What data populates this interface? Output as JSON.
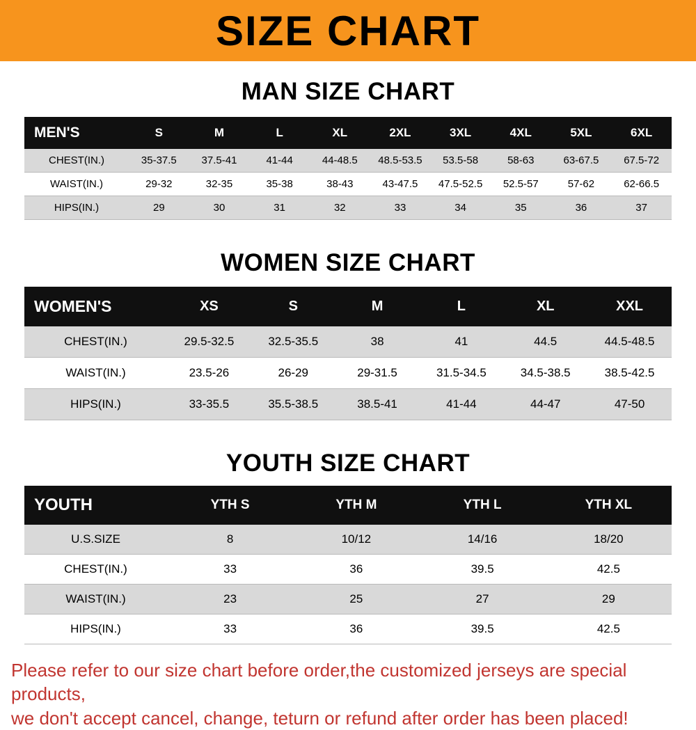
{
  "banner": {
    "title": "SIZE CHART"
  },
  "sections": [
    {
      "title": "MAN SIZE CHART",
      "table": {
        "header": [
          "MEN'S",
          "S",
          "M",
          "L",
          "XL",
          "2XL",
          "3XL",
          "4XL",
          "5XL",
          "6XL"
        ],
        "rows": [
          [
            "CHEST(IN.)",
            "35-37.5",
            "37.5-41",
            "41-44",
            "44-48.5",
            "48.5-53.5",
            "53.5-58",
            "58-63",
            "63-67.5",
            "67.5-72"
          ],
          [
            "WAIST(IN.)",
            "29-32",
            "32-35",
            "35-38",
            "38-43",
            "43-47.5",
            "47.5-52.5",
            "52.5-57",
            "57-62",
            "62-66.5"
          ],
          [
            "HIPS(IN.)",
            "29",
            "30",
            "31",
            "32",
            "33",
            "34",
            "35",
            "36",
            "37"
          ]
        ]
      }
    },
    {
      "title": "WOMEN SIZE CHART",
      "table": {
        "header": [
          "WOMEN'S",
          "XS",
          "S",
          "M",
          "L",
          "XL",
          "XXL"
        ],
        "rows": [
          [
            "CHEST(IN.)",
            "29.5-32.5",
            "32.5-35.5",
            "38",
            "41",
            "44.5",
            "44.5-48.5"
          ],
          [
            "WAIST(IN.)",
            "23.5-26",
            "26-29",
            "29-31.5",
            "31.5-34.5",
            "34.5-38.5",
            "38.5-42.5"
          ],
          [
            "HIPS(IN.)",
            "33-35.5",
            "35.5-38.5",
            "38.5-41",
            "41-44",
            "44-47",
            "47-50"
          ]
        ]
      }
    },
    {
      "title": "YOUTH SIZE CHART",
      "table": {
        "header": [
          "YOUTH",
          "YTH S",
          "YTH M",
          "YTH L",
          "YTH XL"
        ],
        "rows": [
          [
            "U.S.SIZE",
            "8",
            "10/12",
            "14/16",
            "18/20"
          ],
          [
            "CHEST(IN.)",
            "33",
            "36",
            "39.5",
            "42.5"
          ],
          [
            "WAIST(IN.)",
            "23",
            "25",
            "27",
            "29"
          ],
          [
            "HIPS(IN.)",
            "33",
            "36",
            "39.5",
            "42.5"
          ]
        ]
      }
    }
  ],
  "footer": {
    "line1": "Please refer to our size chart before order,the customized jerseys are special products,",
    "line2": "we don't accept cancel, change, teturn or refund after order has been placed!"
  },
  "colors": {
    "banner_bg": "#f7941d",
    "header_bg": "#101010",
    "row_alt": "#d9d9d9",
    "footer_text": "#c13530"
  }
}
